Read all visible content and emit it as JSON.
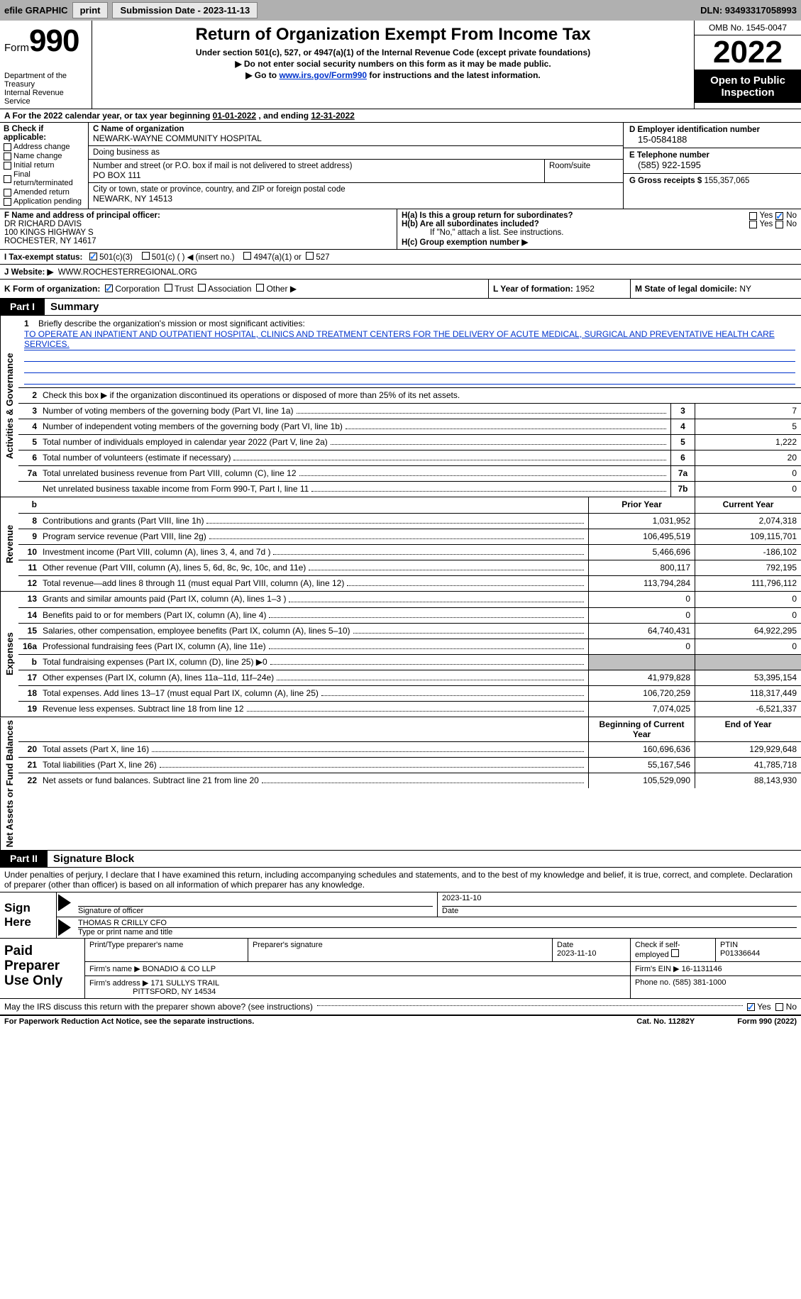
{
  "topbar": {
    "efile": "efile GRAPHIC",
    "print": "print",
    "submission": "Submission Date - 2023-11-13",
    "dln": "DLN: 93493317058993"
  },
  "header": {
    "form_label": "Form",
    "form_num": "990",
    "dept": "Department of the Treasury",
    "irs": "Internal Revenue Service",
    "title": "Return of Organization Exempt From Income Tax",
    "subtitle": "Under section 501(c), 527, or 4947(a)(1) of the Internal Revenue Code (except private foundations)",
    "instr1": "▶ Do not enter social security numbers on this form as it may be made public.",
    "instr2_pre": "▶ Go to ",
    "instr2_link": "www.irs.gov/Form990",
    "instr2_post": " for instructions and the latest information.",
    "omb": "OMB No. 1545-0047",
    "year": "2022",
    "open": "Open to Public Inspection"
  },
  "rowA": {
    "text_pre": "A   For the 2022 calendar year, or tax year beginning ",
    "begin": "01-01-2022",
    "mid": "   , and ending ",
    "end": "12-31-2022"
  },
  "colB": {
    "label": "B Check if applicable:",
    "items": [
      "Address change",
      "Name change",
      "Initial return",
      "Final return/terminated",
      "Amended return",
      "Application pending"
    ]
  },
  "colC": {
    "name_label": "C Name of organization",
    "name": "NEWARK-WAYNE COMMUNITY HOSPITAL",
    "dba_label": "Doing business as",
    "dba": "",
    "street_label": "Number and street (or P.O. box if mail is not delivered to street address)",
    "room_label": "Room/suite",
    "street": "PO BOX 111",
    "city_label": "City or town, state or province, country, and ZIP or foreign postal code",
    "city": "NEWARK, NY  14513"
  },
  "colD": {
    "d_label": "D Employer identification number",
    "ein": "15-0584188",
    "e_label": "E Telephone number",
    "phone": "(585) 922-1595",
    "g_label": "G Gross receipts $",
    "gross": "155,357,065"
  },
  "rowF": {
    "label": "F  Name and address of principal officer:",
    "name": "DR RICHARD DAVIS",
    "addr1": "100 KINGS HIGHWAY S",
    "addr2": "ROCHESTER, NY  14617"
  },
  "rowH": {
    "ha": "H(a)  Is this a group return for subordinates?",
    "hb": "H(b)  Are all subordinates included?",
    "hb_note": "If \"No,\" attach a list. See instructions.",
    "hc": "H(c)  Group exemption number ▶",
    "yes": "Yes",
    "no": "No"
  },
  "rowI": {
    "label": "I   Tax-exempt status:",
    "c3": "501(c)(3)",
    "c": "501(c) (   ) ◀ (insert no.)",
    "a1": "4947(a)(1) or",
    "527": "527"
  },
  "rowJ": {
    "label": "J   Website: ▶",
    "url": "WWW.ROCHESTERREGIONAL.ORG"
  },
  "rowK": {
    "label": "K Form of organization:",
    "opts": [
      "Corporation",
      "Trust",
      "Association",
      "Other ▶"
    ],
    "L_label": "L Year of formation:",
    "L_val": "1952",
    "M_label": "M State of legal domicile:",
    "M_val": "NY"
  },
  "partI": {
    "label": "Part I",
    "title": "Summary",
    "q1_label": "1",
    "q1": "Briefly describe the organization's mission or most significant activities:",
    "mission": "TO OPERATE AN INPATIENT AND OUTPATIENT HOSPITAL, CLINICS AND TREATMENT CENTERS FOR THE DELIVERY OF ACUTE MEDICAL, SURGICAL AND PREVENTATIVE HEALTH CARE SERVICES.",
    "q2_label": "2",
    "q2": "Check this box ▶       if the organization discontinued its operations or disposed of more than 25% of its net assets.",
    "tabs": {
      "ag": "Activities & Governance",
      "rev": "Revenue",
      "exp": "Expenses",
      "na": "Net Assets or Fund Balances"
    },
    "lines_ag": [
      {
        "n": "3",
        "d": "Number of voting members of the governing body (Part VI, line 1a)",
        "box": "3",
        "v": "7"
      },
      {
        "n": "4",
        "d": "Number of independent voting members of the governing body (Part VI, line 1b)",
        "box": "4",
        "v": "5"
      },
      {
        "n": "5",
        "d": "Total number of individuals employed in calendar year 2022 (Part V, line 2a)",
        "box": "5",
        "v": "1,222"
      },
      {
        "n": "6",
        "d": "Total number of volunteers (estimate if necessary)",
        "box": "6",
        "v": "20"
      },
      {
        "n": "7a",
        "d": "Total unrelated business revenue from Part VIII, column (C), line 12",
        "box": "7a",
        "v": "0"
      },
      {
        "n": "",
        "d": "Net unrelated business taxable income from Form 990-T, Part I, line 11",
        "box": "7b",
        "v": "0"
      }
    ],
    "col_py": "Prior Year",
    "col_cy": "Current Year",
    "lines_rev": [
      {
        "n": "8",
        "d": "Contributions and grants (Part VIII, line 1h)",
        "py": "1,031,952",
        "cy": "2,074,318"
      },
      {
        "n": "9",
        "d": "Program service revenue (Part VIII, line 2g)",
        "py": "106,495,519",
        "cy": "109,115,701"
      },
      {
        "n": "10",
        "d": "Investment income (Part VIII, column (A), lines 3, 4, and 7d )",
        "py": "5,466,696",
        "cy": "-186,102"
      },
      {
        "n": "11",
        "d": "Other revenue (Part VIII, column (A), lines 5, 6d, 8c, 9c, 10c, and 11e)",
        "py": "800,117",
        "cy": "792,195"
      },
      {
        "n": "12",
        "d": "Total revenue—add lines 8 through 11 (must equal Part VIII, column (A), line 12)",
        "py": "113,794,284",
        "cy": "111,796,112"
      }
    ],
    "lines_exp": [
      {
        "n": "13",
        "d": "Grants and similar amounts paid (Part IX, column (A), lines 1–3 )",
        "py": "0",
        "cy": "0"
      },
      {
        "n": "14",
        "d": "Benefits paid to or for members (Part IX, column (A), line 4)",
        "py": "0",
        "cy": "0"
      },
      {
        "n": "15",
        "d": "Salaries, other compensation, employee benefits (Part IX, column (A), lines 5–10)",
        "py": "64,740,431",
        "cy": "64,922,295"
      },
      {
        "n": "16a",
        "d": "Professional fundraising fees (Part IX, column (A), line 11e)",
        "py": "0",
        "cy": "0"
      },
      {
        "n": "b",
        "d": "Total fundraising expenses (Part IX, column (D), line 25) ▶0",
        "py": "",
        "cy": "",
        "shaded": true
      },
      {
        "n": "17",
        "d": "Other expenses (Part IX, column (A), lines 11a–11d, 11f–24e)",
        "py": "41,979,828",
        "cy": "53,395,154"
      },
      {
        "n": "18",
        "d": "Total expenses. Add lines 13–17 (must equal Part IX, column (A), line 25)",
        "py": "106,720,259",
        "cy": "118,317,449"
      },
      {
        "n": "19",
        "d": "Revenue less expenses. Subtract line 18 from line 12",
        "py": "7,074,025",
        "cy": "-6,521,337"
      }
    ],
    "col_boy": "Beginning of Current Year",
    "col_eoy": "End of Year",
    "lines_na": [
      {
        "n": "20",
        "d": "Total assets (Part X, line 16)",
        "py": "160,696,636",
        "cy": "129,929,648"
      },
      {
        "n": "21",
        "d": "Total liabilities (Part X, line 26)",
        "py": "55,167,546",
        "cy": "41,785,718"
      },
      {
        "n": "22",
        "d": "Net assets or fund balances. Subtract line 21 from line 20",
        "py": "105,529,090",
        "cy": "88,143,930"
      }
    ]
  },
  "partII": {
    "label": "Part II",
    "title": "Signature Block",
    "penalty": "Under penalties of perjury, I declare that I have examined this return, including accompanying schedules and statements, and to the best of my knowledge and belief, it is true, correct, and complete. Declaration of preparer (other than officer) is based on all information of which preparer has any knowledge.",
    "sign_here": "Sign Here",
    "sig_officer": "Signature of officer",
    "sig_date": "Date",
    "sig_date_v": "2023-11-10",
    "sig_name": "THOMAS R CRILLY CFO",
    "sig_name_label": "Type or print name and title",
    "paid": "Paid Preparer Use Only",
    "pp_name_label": "Print/Type preparer's name",
    "pp_sig_label": "Preparer's signature",
    "pp_date_label": "Date",
    "pp_date": "2023-11-10",
    "pp_check": "Check         if self-employed",
    "pp_ptin_label": "PTIN",
    "pp_ptin": "P01336644",
    "firm_name_label": "Firm's name      ▶",
    "firm_name": "BONADIO & CO LLP",
    "firm_ein_label": "Firm's EIN ▶",
    "firm_ein": "16-1131146",
    "firm_addr_label": "Firm's address ▶",
    "firm_addr1": "171 SULLYS TRAIL",
    "firm_addr2": "PITTSFORD, NY  14534",
    "phone_label": "Phone no.",
    "phone": "(585) 381-1000"
  },
  "footer": {
    "discuss": "May the IRS discuss this return with the preparer shown above? (see instructions)",
    "yes": "Yes",
    "no": "No",
    "paperwork": "For Paperwork Reduction Act Notice, see the separate instructions.",
    "cat": "Cat. No. 11282Y",
    "form": "Form 990 (2022)"
  }
}
